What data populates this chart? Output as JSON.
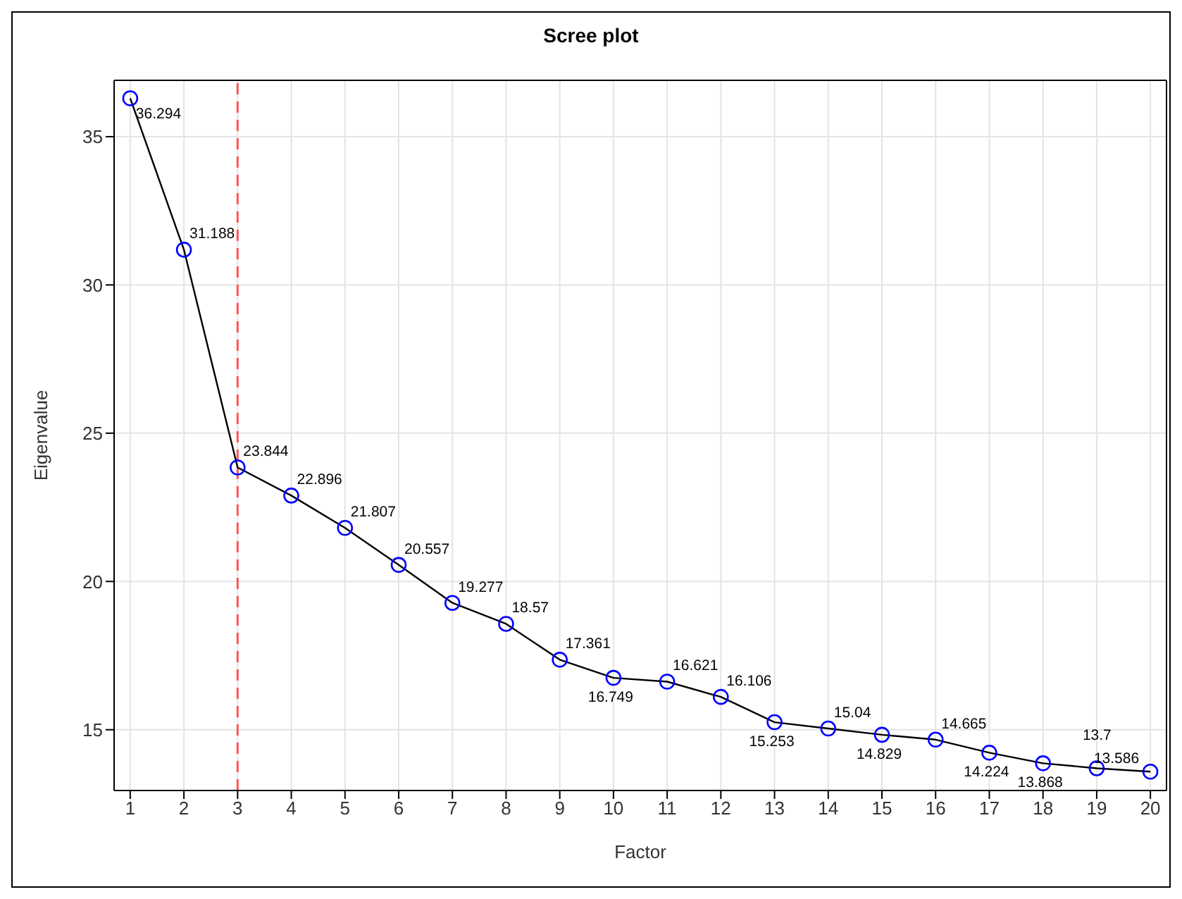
{
  "chart_data": {
    "type": "line",
    "title": "Scree plot",
    "xlabel": "Factor",
    "ylabel": "Eigenvalue",
    "x": [
      1,
      2,
      3,
      4,
      5,
      6,
      7,
      8,
      9,
      10,
      11,
      12,
      13,
      14,
      15,
      16,
      17,
      18,
      19,
      20
    ],
    "series": [
      {
        "color": "#000000",
        "colors": [
          "#0000ff",
          "#0000ff",
          "#0000ff",
          "#0000ff",
          "#0000ff",
          "#0000ff",
          "#0000ff",
          "#0000ff",
          "#0000ff",
          "#0000ff",
          "#0000ff",
          "#0000ff",
          "#0000ff",
          "#0000ff",
          "#0000ff",
          "#0000ff",
          "#0000ff",
          "#0000ff",
          "#0000ff",
          "#0000ff"
        ],
        "values": [
          36.294,
          31.188,
          23.844,
          22.896,
          21.807,
          20.557,
          19.277,
          18.57,
          17.361,
          16.749,
          16.621,
          16.106,
          15.253,
          15.04,
          14.829,
          14.665,
          14.224,
          13.868,
          13.7,
          13.586
        ]
      }
    ],
    "xlim": [
      0.7,
      20.3
    ],
    "xticks": [
      1,
      2,
      3,
      4,
      5,
      6,
      7,
      8,
      9,
      10,
      11,
      12,
      13,
      14,
      15,
      16,
      17,
      18,
      19,
      20
    ],
    "ylim": [
      12.95,
      36.9
    ],
    "yticks": [
      15,
      20,
      25,
      30,
      35
    ],
    "ref_lines": [
      {
        "axis": "x",
        "value": 3,
        "color": "#ff5555",
        "line_style": "dashed"
      }
    ],
    "grid": true,
    "marker": "circle",
    "line_style": "solid",
    "data_labels": true
  }
}
